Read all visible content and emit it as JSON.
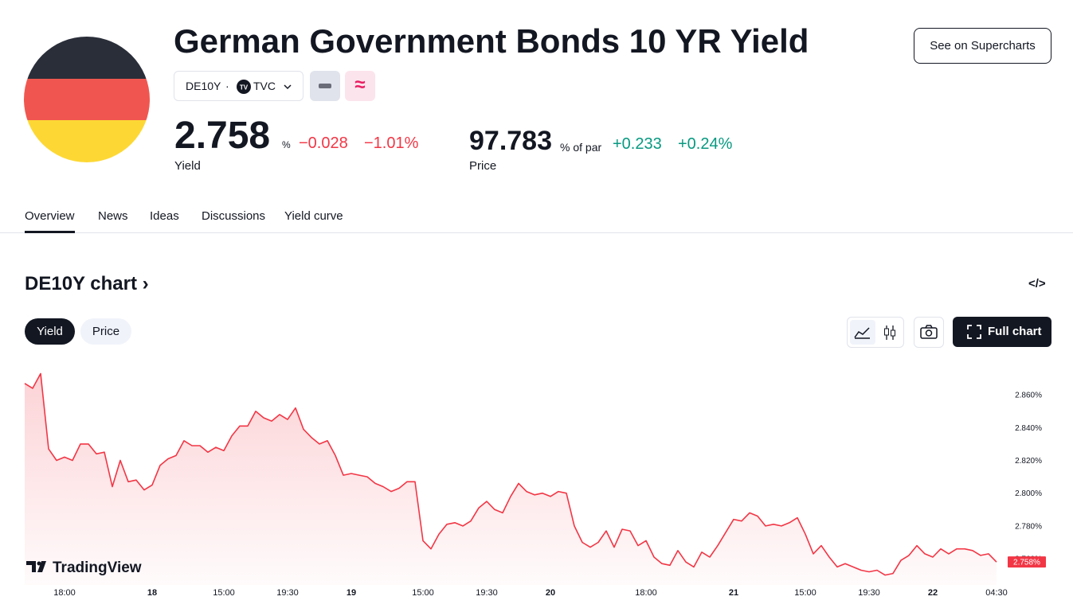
{
  "header": {
    "title": "German Government Bonds 10 YR Yield",
    "symbol": "DE10Y",
    "separator": "·",
    "exchange": "TVC",
    "action": "See on Supercharts"
  },
  "quotes": [
    {
      "value": "2.758",
      "unit": "%",
      "change": "−0.028",
      "change_percent": "−1.01%",
      "label": "Yield"
    },
    {
      "value": "97.783",
      "unit": "% of par",
      "change": "+0.233",
      "change_percent": "+0.24%",
      "label": "Price"
    }
  ],
  "tabs": [
    "Overview",
    "News",
    "Ideas",
    "Discussions",
    "Yield curve"
  ],
  "section": {
    "title": "DE10Y chart",
    "toggles": [
      "Yield",
      "Price"
    ],
    "full_chart": "Full chart"
  },
  "chart_data": {
    "type": "area",
    "color": "#f23645",
    "watermark": "TradingView",
    "last_value_label": "2.758%",
    "categories": [
      null,
      null,
      null,
      null,
      null,
      "18:00",
      null,
      null,
      null,
      null,
      null,
      null,
      null,
      null,
      null,
      null,
      "18",
      null,
      null,
      null,
      null,
      null,
      null,
      null,
      null,
      "15:00",
      null,
      null,
      null,
      null,
      null,
      null,
      null,
      "19:30",
      null,
      null,
      null,
      null,
      null,
      null,
      null,
      "19",
      null,
      null,
      null,
      null,
      null,
      null,
      null,
      null,
      "15:00",
      null,
      null,
      null,
      null,
      null,
      null,
      null,
      "19:30",
      null,
      null,
      null,
      null,
      null,
      null,
      null,
      "20",
      null,
      null,
      null,
      null,
      null,
      null,
      null,
      null,
      null,
      null,
      null,
      "18:00",
      null,
      null,
      null,
      null,
      null,
      null,
      null,
      null,
      null,
      null,
      "21",
      null,
      null,
      null,
      null,
      null,
      null,
      null,
      null,
      "15:00",
      null,
      null,
      null,
      null,
      null,
      null,
      null,
      "19:30",
      null,
      null,
      null,
      null,
      null,
      null,
      null,
      "22",
      null,
      null,
      null,
      null,
      null,
      null,
      null,
      "04:30"
    ],
    "values": [
      2.867,
      2.864,
      2.873,
      2.827,
      2.82,
      2.822,
      2.82,
      2.83,
      2.83,
      2.824,
      2.825,
      2.804,
      2.82,
      2.807,
      2.808,
      2.802,
      2.805,
      2.817,
      2.821,
      2.823,
      2.832,
      2.829,
      2.829,
      2.825,
      2.828,
      2.826,
      2.835,
      2.841,
      2.841,
      2.85,
      2.846,
      2.844,
      2.848,
      2.845,
      2.852,
      2.839,
      2.834,
      2.83,
      2.832,
      2.823,
      2.811,
      2.812,
      2.811,
      2.81,
      2.806,
      2.804,
      2.801,
      2.803,
      2.807,
      2.807,
      2.771,
      2.766,
      2.775,
      2.781,
      2.782,
      2.78,
      2.783,
      2.791,
      2.795,
      2.79,
      2.788,
      2.798,
      2.806,
      2.801,
      2.799,
      2.8,
      2.798,
      2.801,
      2.8,
      2.78,
      2.77,
      2.767,
      2.77,
      2.777,
      2.767,
      2.778,
      2.777,
      2.768,
      2.771,
      2.761,
      2.757,
      2.756,
      2.765,
      2.758,
      2.755,
      2.764,
      2.761,
      2.768,
      2.776,
      2.784,
      2.783,
      2.788,
      2.786,
      2.78,
      2.781,
      2.78,
      2.782,
      2.785,
      2.775,
      2.763,
      2.768,
      2.761,
      2.755,
      2.757,
      2.755,
      2.753,
      2.752,
      2.753,
      2.75,
      2.751,
      2.759,
      2.762,
      2.768,
      2.763,
      2.761,
      2.766,
      2.763,
      2.766,
      2.766,
      2.765,
      2.762,
      2.763,
      2.758
    ],
    "ylim": [
      2.744,
      2.88
    ],
    "yticks": [
      {
        "value": 2.76,
        "label": "2.760%"
      },
      {
        "value": 2.78,
        "label": "2.780%"
      },
      {
        "value": 2.8,
        "label": "2.800%"
      },
      {
        "value": 2.82,
        "label": "2.820%"
      },
      {
        "value": 2.84,
        "label": "2.840%"
      },
      {
        "value": 2.86,
        "label": "2.860%"
      }
    ]
  }
}
